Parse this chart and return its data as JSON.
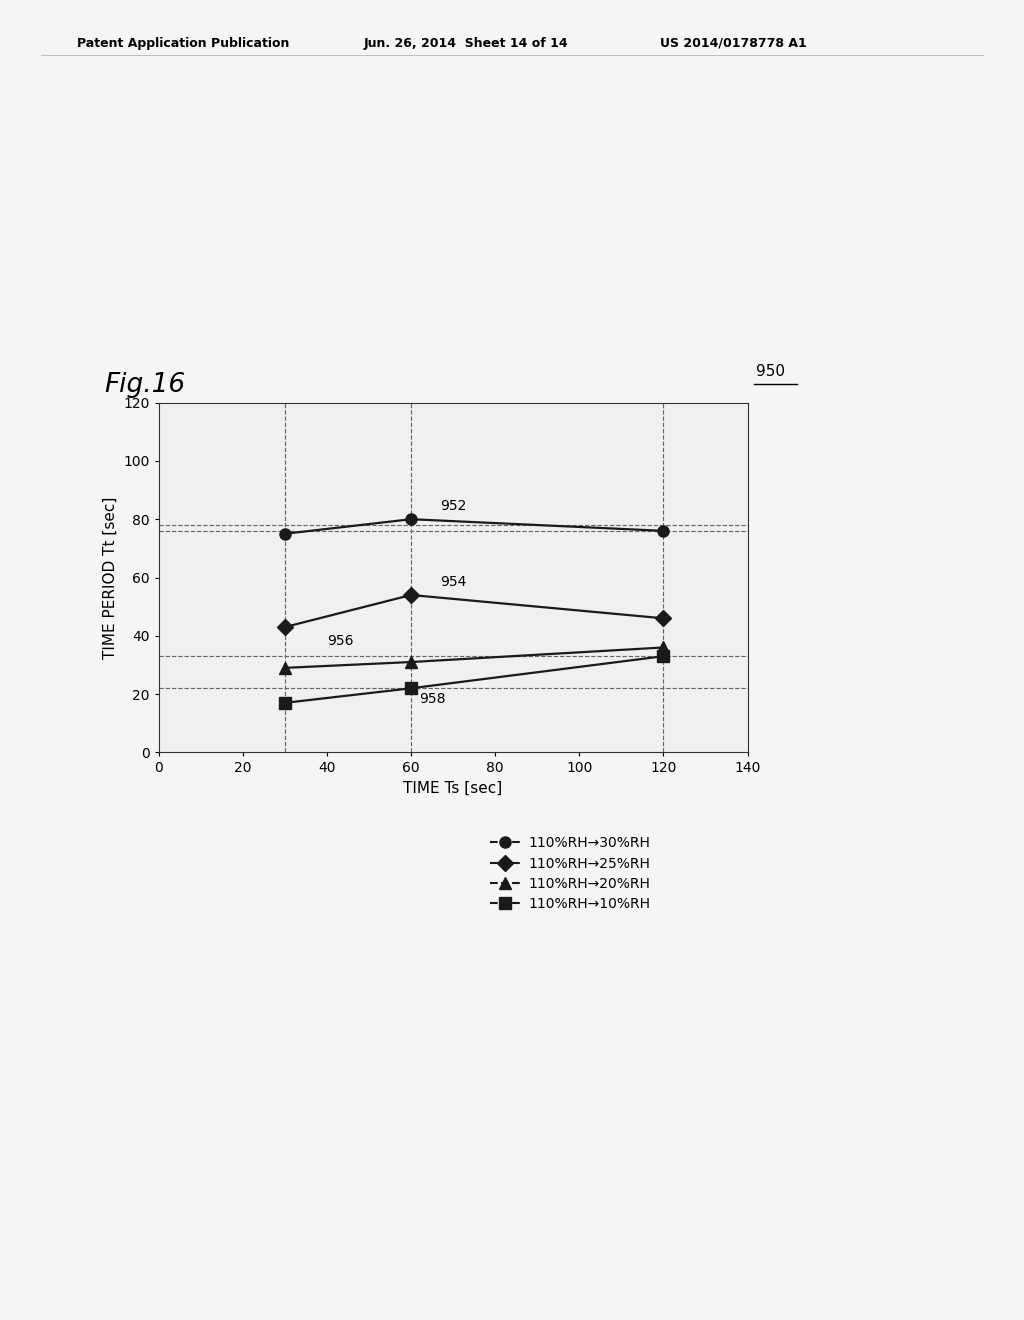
{
  "header_left": "Patent Application Publication",
  "header_mid": "Jun. 26, 2014  Sheet 14 of 14",
  "header_right": "US 2014/0178778 A1",
  "fig_label": "Fig.16",
  "chart_label": "950",
  "xlabel": "TIME Ts [sec]",
  "ylabel": "TIME PERIOD Tt [sec]",
  "xlim": [
    0,
    140
  ],
  "ylim": [
    0,
    120
  ],
  "xticks": [
    0,
    20,
    40,
    60,
    80,
    100,
    120,
    140
  ],
  "yticks": [
    0,
    20,
    40,
    60,
    80,
    100,
    120
  ],
  "series": [
    {
      "label": "110%RH→30%RH",
      "id": "952",
      "x": [
        30,
        60,
        120
      ],
      "y": [
        75,
        80,
        76
      ],
      "marker": "o",
      "color": "#1a1a1a",
      "linestyle": "-",
      "linewidth": 1.6,
      "markersize": 8
    },
    {
      "label": "110%RH→25%RH",
      "id": "954",
      "x": [
        30,
        60,
        120
      ],
      "y": [
        43,
        54,
        46
      ],
      "marker": "D",
      "color": "#1a1a1a",
      "linestyle": "-",
      "linewidth": 1.6,
      "markersize": 8
    },
    {
      "label": "110%RH→20%RH",
      "id": "956",
      "x": [
        30,
        60,
        120
      ],
      "y": [
        29,
        31,
        36
      ],
      "marker": "^",
      "color": "#1a1a1a",
      "linestyle": "-",
      "linewidth": 1.6,
      "markersize": 8
    },
    {
      "label": "110%RH→10%RH",
      "id": "958",
      "x": [
        30,
        60,
        120
      ],
      "y": [
        17,
        22,
        33
      ],
      "marker": "s",
      "color": "#1a1a1a",
      "linestyle": "-",
      "linewidth": 1.6,
      "markersize": 8
    }
  ],
  "hlines": [
    76,
    78,
    33,
    22
  ],
  "vlines": [
    30,
    60,
    120
  ],
  "bg_color": "#f5f5f5",
  "plot_bg_color": "#f0f0f0",
  "annot_952": [
    67,
    83
  ],
  "annot_954": [
    67,
    57
  ],
  "annot_956": [
    40,
    37
  ],
  "annot_958": [
    62,
    17
  ],
  "header_fontsize": 9,
  "fig_label_fontsize": 19,
  "axis_label_fontsize": 11,
  "tick_fontsize": 10,
  "annot_fontsize": 10,
  "legend_fontsize": 10,
  "chart_label_fontsize": 11
}
